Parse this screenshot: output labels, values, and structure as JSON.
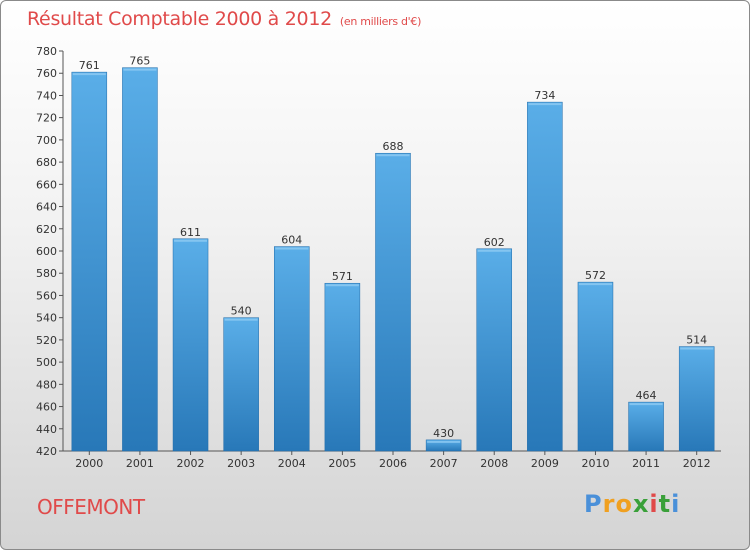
{
  "title": "Résultat Comptable 2000 à 2012",
  "subtitle": "(en milliers d'€)",
  "place": "OFFEMONT",
  "logo": {
    "letters": [
      "P",
      "r",
      "o",
      "x",
      "i",
      "t",
      "i"
    ],
    "colors": [
      "#4a90d9",
      "#f0a020",
      "#f0a020",
      "#3aa03a",
      "#e04a4a",
      "#3aa03a",
      "#4a90d9"
    ]
  },
  "colors": {
    "title": "#e04a4a",
    "bar_light": "#5aaee8",
    "bar_dark": "#2878b8"
  },
  "chart_data": {
    "type": "bar",
    "title": "Résultat Comptable 2000 à 2012",
    "xlabel": "",
    "ylabel": "",
    "categories": [
      "2000",
      "2001",
      "2002",
      "2003",
      "2004",
      "2005",
      "2006",
      "2007",
      "2008",
      "2009",
      "2010",
      "2011",
      "2012"
    ],
    "values": [
      761,
      765,
      611,
      540,
      604,
      571,
      688,
      430,
      602,
      734,
      572,
      464,
      514
    ],
    "ylim": [
      420,
      780
    ],
    "yticks": [
      420,
      440,
      460,
      480,
      500,
      520,
      540,
      560,
      580,
      600,
      620,
      640,
      660,
      680,
      700,
      720,
      740,
      760,
      780
    ],
    "grid": false,
    "data_labels": true
  }
}
